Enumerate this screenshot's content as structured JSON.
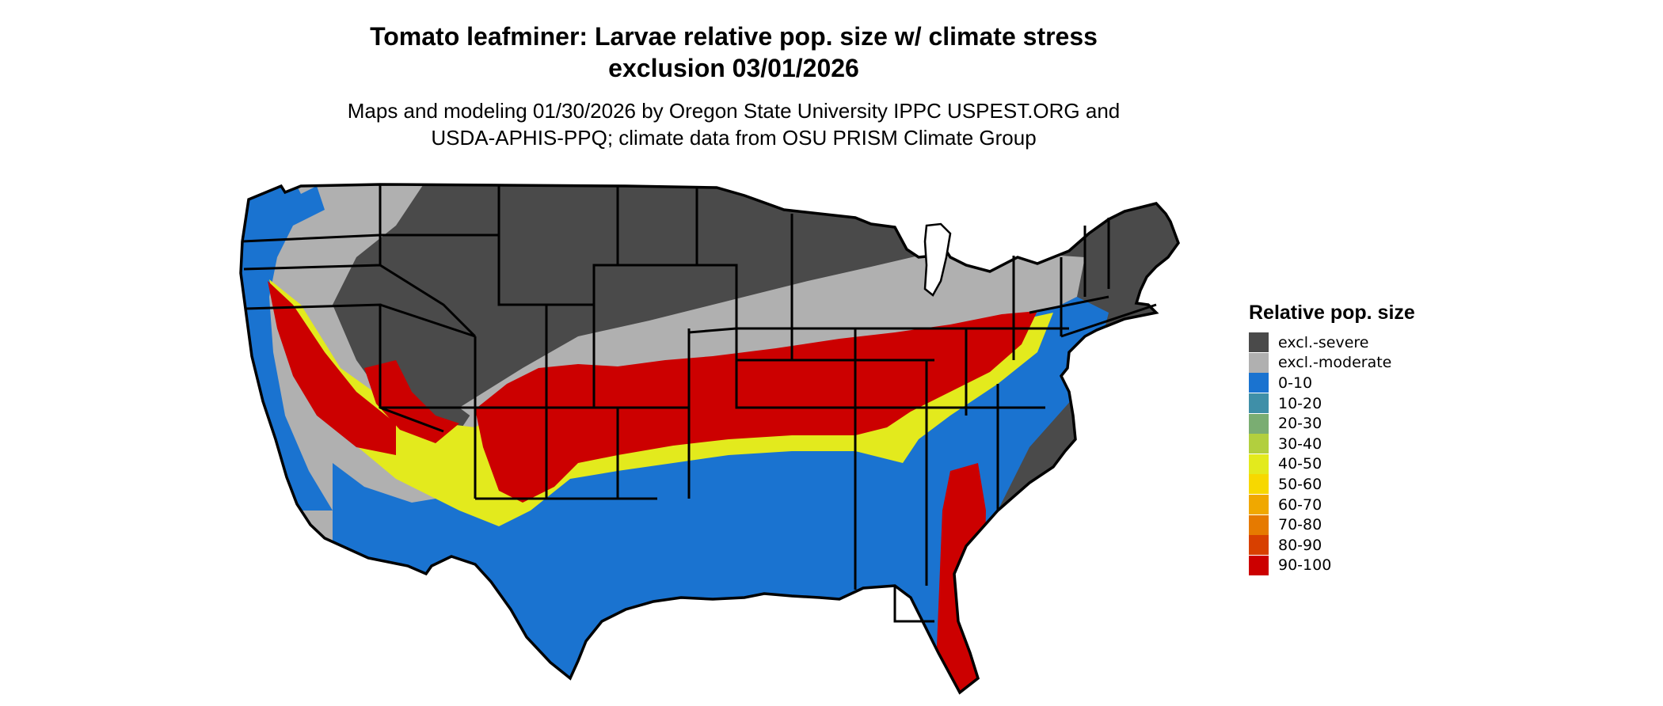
{
  "title": {
    "line1": "Tomato leafminer: Larvae relative pop. size w/ climate stress",
    "line2": "exclusion 03/01/2026"
  },
  "subtitle": {
    "line1": "Maps and modeling 01/30/2026 by Oregon State University IPPC USPEST.ORG and",
    "line2": "USDA-APHIS-PPQ; climate data from OSU PRISM Climate Group"
  },
  "legend": {
    "title": "Relative pop. size",
    "items": [
      {
        "label": "excl.-severe",
        "color": "#4a4a4a"
      },
      {
        "label": "excl.-moderate",
        "color": "#b0b0b0"
      },
      {
        "label": "0-10",
        "color": "#1a73d0"
      },
      {
        "label": "10-20",
        "color": "#3f8fa8"
      },
      {
        "label": "20-30",
        "color": "#7aad72"
      },
      {
        "label": "30-40",
        "color": "#b2cf3e"
      },
      {
        "label": "40-50",
        "color": "#e3ea1d"
      },
      {
        "label": "50-60",
        "color": "#f7d800"
      },
      {
        "label": "60-70",
        "color": "#f0a800"
      },
      {
        "label": "70-80",
        "color": "#e67a00"
      },
      {
        "label": "80-90",
        "color": "#d84000"
      },
      {
        "label": "90-100",
        "color": "#cc0000"
      }
    ]
  },
  "map": {
    "region": "contiguous United States",
    "zone_colors": {
      "excl_severe": "#4a4a4a",
      "excl_moderate": "#b0b0b0",
      "low": "#1a73d0",
      "mid": "#e3ea1d",
      "high": "#cc0000"
    }
  }
}
